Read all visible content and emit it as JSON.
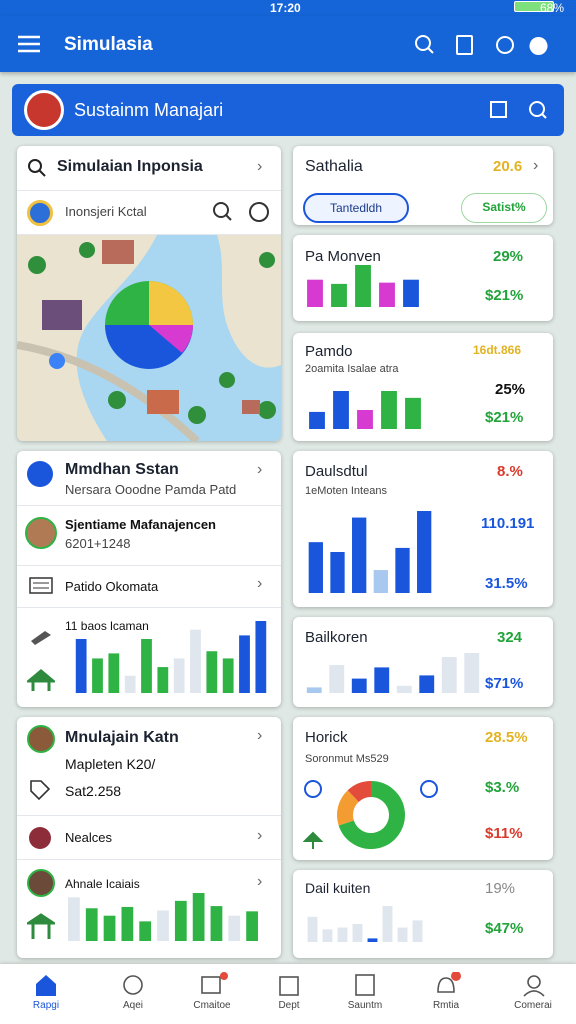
{
  "status_bar": {
    "time": "17:20",
    "battery": "68%"
  },
  "app_bar": {
    "title": "Simulasia"
  },
  "banner": {
    "title": "Sustainm Manajari"
  },
  "left": [
    {
      "search": "Simulaian Inponsia",
      "row": "Inonsjeri Kctal"
    },
    {
      "title": "Mmdhan Sstan",
      "subtitle": "Nersara Ooodne Pamda Patd",
      "person": "Sjentiame Mafanajencen",
      "person_id": "6201+1248",
      "item": "Patido Okomata",
      "chart_label": "11 baos lcaman",
      "bars": [
        {
          "value": 75,
          "color": "#1a56db"
        },
        {
          "value": 48,
          "color": "#2fb344"
        },
        {
          "value": 55,
          "color": "#2fb344"
        },
        {
          "value": 24,
          "color": "#dfe6ee"
        },
        {
          "value": 75,
          "color": "#2fb344"
        },
        {
          "value": 36,
          "color": "#2fb344"
        },
        {
          "value": 48,
          "color": "#dfe6ee"
        },
        {
          "value": 88,
          "color": "#dfe6ee"
        },
        {
          "value": 58,
          "color": "#2fb344"
        },
        {
          "value": 48,
          "color": "#2fb344"
        },
        {
          "value": 80,
          "color": "#1a56db"
        },
        {
          "value": 100,
          "color": "#1a56db"
        }
      ]
    },
    {
      "title": "Mnulajain Katn",
      "subtitle": "Mapleten K20/",
      "amount": "Sat2.258",
      "item": "Nealces",
      "person": "Ahnale Icaiais",
      "bars": [
        {
          "value": 100,
          "color": "#dfe6ee"
        },
        {
          "value": 75,
          "color": "#2fb344"
        },
        {
          "value": 58,
          "color": "#2fb344"
        },
        {
          "value": 78,
          "color": "#2fb344"
        },
        {
          "value": 45,
          "color": "#2fb344"
        },
        {
          "value": 70,
          "color": "#dfe6ee"
        },
        {
          "value": 92,
          "color": "#2fb344"
        },
        {
          "value": 110,
          "color": "#2fb344"
        },
        {
          "value": 80,
          "color": "#2fb344"
        },
        {
          "value": 58,
          "color": "#dfe6ee"
        },
        {
          "value": 68,
          "color": "#2fb344"
        }
      ]
    }
  ],
  "right": [
    {
      "title": "Sathalia",
      "value": "20.6",
      "button": "Tantedldh",
      "chip": "Satist%"
    },
    {
      "title": "Pa Monven",
      "value": "29%",
      "change": "$21%",
      "bars": [
        {
          "value": 65,
          "color": "#d63ad1"
        },
        {
          "value": 55,
          "color": "#2fb344"
        },
        {
          "value": 100,
          "color": "#2fb344"
        },
        {
          "value": 58,
          "color": "#d63ad1"
        },
        {
          "value": 65,
          "color": "#1a56db"
        }
      ]
    },
    {
      "title": "Pamdo",
      "value": "16dt.866",
      "subtitle": "2oamita Isalae atra",
      "value2": "25%",
      "change": "$21%",
      "bars": [
        {
          "value": 45,
          "color": "#1a56db"
        },
        {
          "value": 100,
          "color": "#1a56db"
        },
        {
          "value": 50,
          "color": "#d63ad1"
        },
        {
          "value": 100,
          "color": "#2fb344"
        },
        {
          "value": 82,
          "color": "#2fb344"
        }
      ]
    },
    {
      "title": "Daulsdtul",
      "value": "8.%",
      "subtitle": "1eMoten Inteans",
      "value2": "110.191",
      "change": "31.5%",
      "bars": [
        {
          "value": 62,
          "color": "#1a56db"
        },
        {
          "value": 50,
          "color": "#1a56db"
        },
        {
          "value": 92,
          "color": "#1a56db"
        },
        {
          "value": 28,
          "color": "#a9c8f0"
        },
        {
          "value": 55,
          "color": "#1a56db"
        },
        {
          "value": 100,
          "color": "#1a56db"
        }
      ]
    },
    {
      "title": "Bailkoren",
      "value": "324",
      "change": "$71%",
      "bars": [
        {
          "value": 14,
          "color": "#a9c8f0"
        },
        {
          "value": 70,
          "color": "#dfe6ee"
        },
        {
          "value": 36,
          "color": "#1a56db"
        },
        {
          "value": 64,
          "color": "#1a56db"
        },
        {
          "value": 18,
          "color": "#dfe6ee"
        },
        {
          "value": 44,
          "color": "#1a56db"
        },
        {
          "value": 90,
          "color": "#dfe6ee"
        },
        {
          "value": 100,
          "color": "#dfe6ee"
        }
      ]
    },
    {
      "title": "Horick",
      "value": "28.5%",
      "subtitle": "Soronmut Ms529",
      "value2": "$3.%",
      "change": "$11%",
      "donut": [
        {
          "value": 70,
          "color": "#2fb344"
        },
        {
          "value": 18,
          "color": "#f39c32"
        },
        {
          "value": 12,
          "color": "#e34b3a"
        }
      ]
    },
    {
      "title": "Dail kuiten",
      "value": "19%",
      "change": "$47%",
      "bars": [
        {
          "value": 70,
          "color": "#dfe6ee"
        },
        {
          "value": 35,
          "color": "#dfe6ee"
        },
        {
          "value": 40,
          "color": "#dfe6ee"
        },
        {
          "value": 50,
          "color": "#dfe6ee"
        },
        {
          "value": 10,
          "color": "#1a56db"
        },
        {
          "value": 100,
          "color": "#dfe6ee"
        },
        {
          "value": 40,
          "color": "#dfe6ee"
        },
        {
          "value": 60,
          "color": "#dfe6ee"
        }
      ]
    }
  ],
  "nav": [
    "Rapgi",
    "Aqei",
    "Cmaitoe",
    "Dept",
    "Sauntm",
    "Rmtia",
    "Comerai"
  ]
}
